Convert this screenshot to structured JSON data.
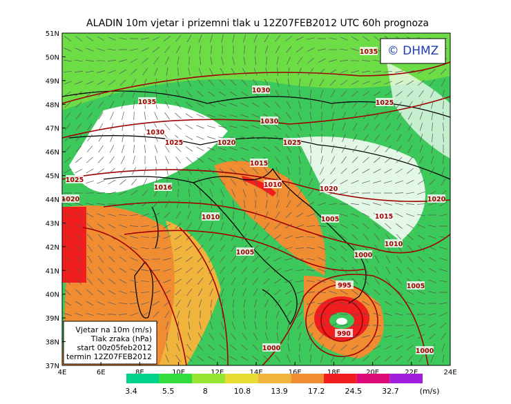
{
  "title": "ALADIN 10m vjetar i prizemni tlak u 12Z07FEB2012 UTC 60h prognoza",
  "logo": "© DHMZ",
  "lat_labels": [
    "51N",
    "50N",
    "49N",
    "48N",
    "47N",
    "46N",
    "45N",
    "44N",
    "43N",
    "42N",
    "41N",
    "40N",
    "39N",
    "38N",
    "37N"
  ],
  "lon_labels": [
    "4E",
    "6E",
    "8E",
    "10E",
    "12E",
    "14E",
    "16E",
    "18E",
    "20E",
    "22E",
    "24E"
  ],
  "info_box": [
    "Vjetar na 10m (m/s)",
    "Tlak zraka (hPa)",
    "start 00z05feb2012",
    "termin 12Z07FEB2012"
  ],
  "isobar_labels": [
    "1035",
    "1030",
    "1035",
    "1025",
    "1030",
    "1030",
    "1025",
    "1020",
    "1025",
    "1015",
    "1010",
    "1025",
    "1016",
    "1020",
    "1020",
    "1020",
    "1010",
    "1005",
    "1015",
    "1005",
    "1010",
    "1000",
    "995",
    "1005",
    "990",
    "1000",
    "1000"
  ],
  "legend": {
    "colors": [
      "#00d28c",
      "#32dc3c",
      "#96e632",
      "#e6dc32",
      "#f0b43c",
      "#f08c32",
      "#f01e1e",
      "#dc0a78",
      "#a01edc"
    ],
    "labels": [
      "3.4",
      "5.5",
      "8",
      "10.8",
      "13.9",
      "17.2",
      "24.5",
      "32.7"
    ],
    "unit": "(m/s)"
  }
}
